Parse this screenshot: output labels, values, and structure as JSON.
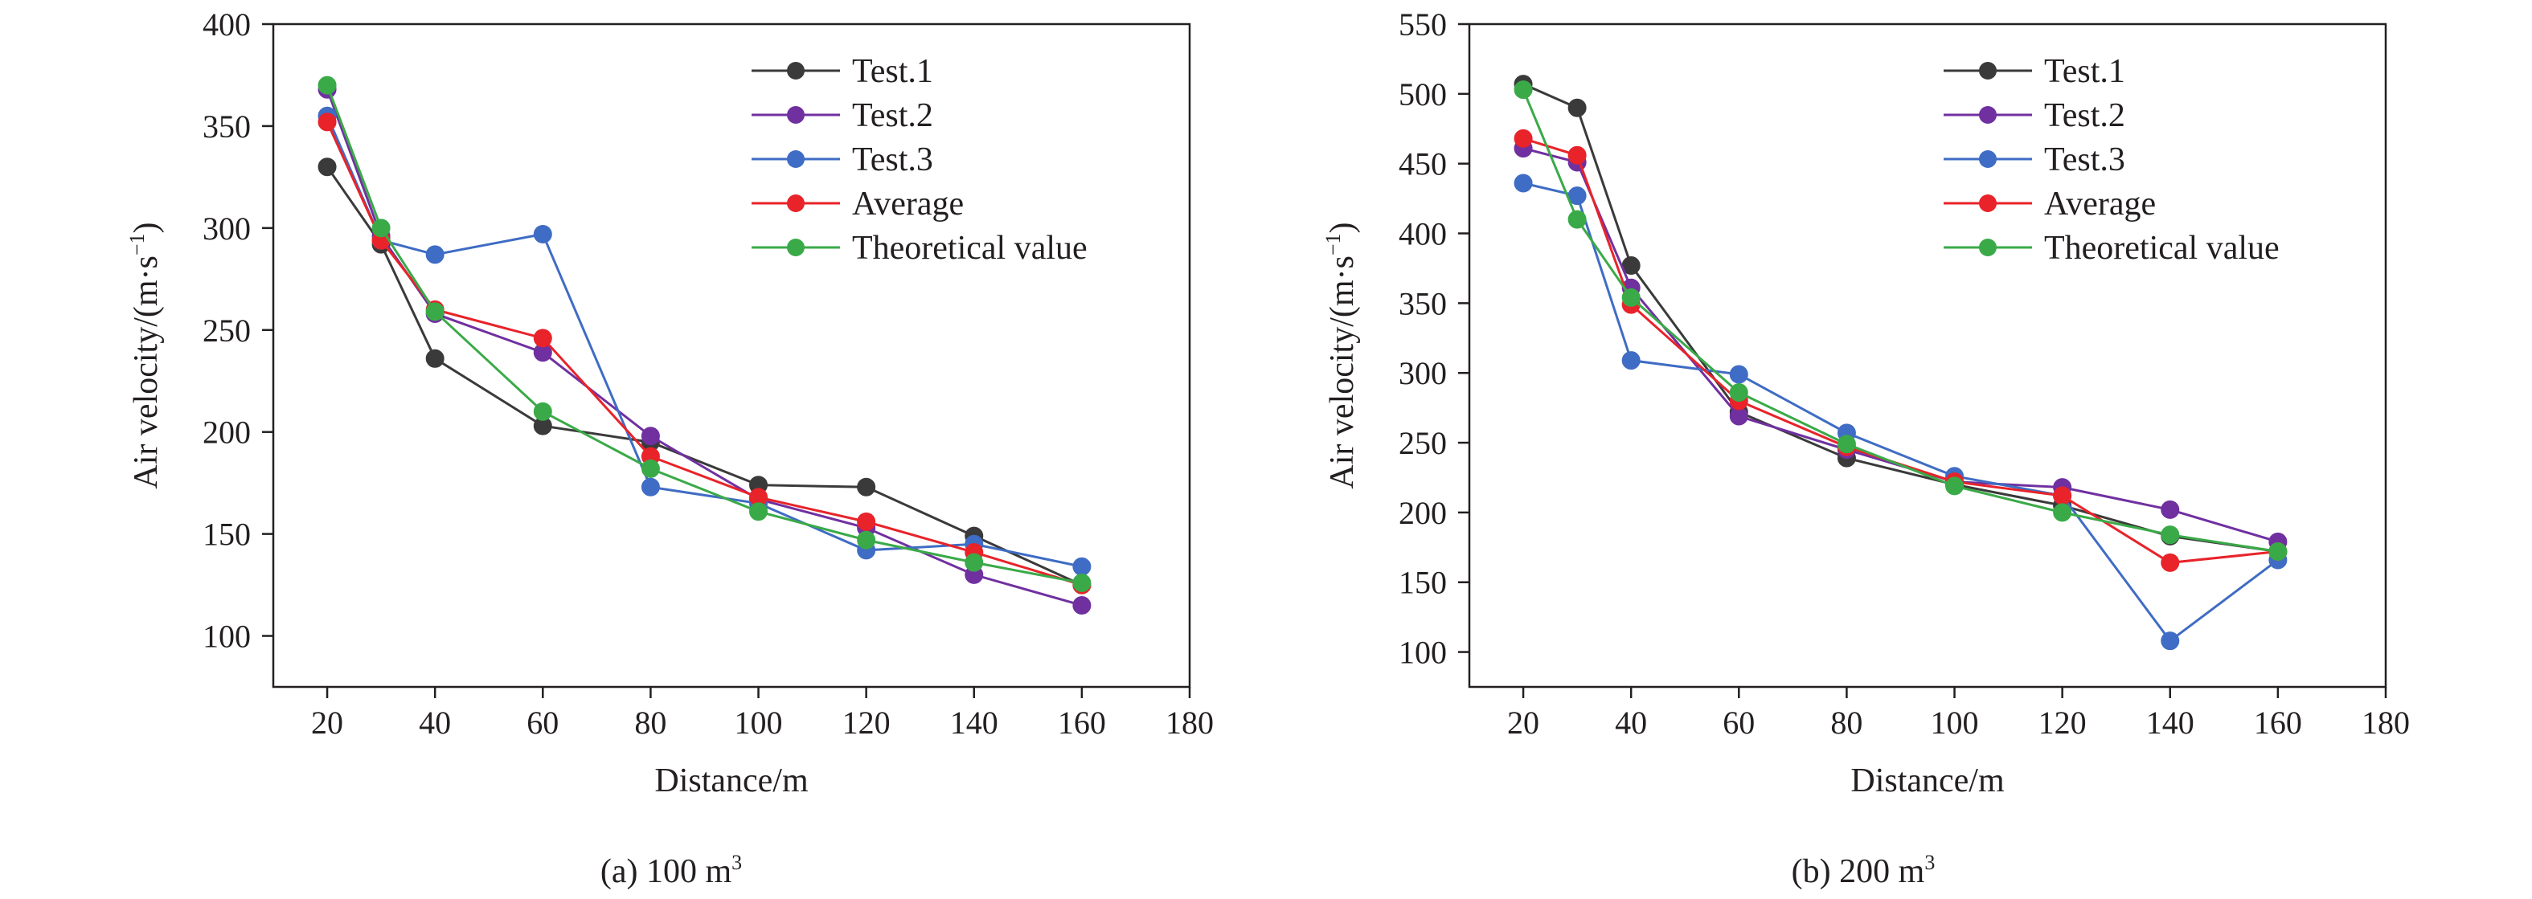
{
  "chart_data": [
    {
      "type": "line",
      "caption": "(a) 100 m",
      "caption_sup": "3",
      "xlabel": "Distance/m",
      "ylabel_main": "Air velocity/(m·s",
      "ylabel_sup": "−1",
      "ylabel_end": ")",
      "xlim": [
        10,
        180
      ],
      "ylim": [
        75,
        400
      ],
      "xticks": [
        20,
        40,
        60,
        80,
        100,
        120,
        140,
        160,
        180
      ],
      "yticks": [
        100,
        150,
        200,
        250,
        300,
        350,
        400
      ],
      "x": [
        20,
        30,
        40,
        60,
        80,
        100,
        120,
        140,
        160
      ],
      "legend_position": "top-right",
      "series": [
        {
          "name": "Test.1",
          "color": "#3a3a3a",
          "values": [
            330,
            292,
            236,
            203,
            195,
            174,
            173,
            149,
            125
          ]
        },
        {
          "name": "Test.2",
          "color": "#7030a0",
          "values": [
            368,
            296,
            258,
            239,
            198,
            167,
            153,
            130,
            115
          ]
        },
        {
          "name": "Test.3",
          "color": "#3f6cc4",
          "values": [
            355,
            294,
            287,
            297,
            173,
            165,
            142,
            145,
            134
          ]
        },
        {
          "name": "Average",
          "color": "#e8232a",
          "values": [
            352,
            294,
            260,
            246,
            188,
            168,
            156,
            141,
            125
          ]
        },
        {
          "name": "Theoretical value",
          "color": "#3aaa48",
          "values": [
            370,
            300,
            259,
            210,
            182,
            161,
            147,
            136,
            126
          ]
        }
      ]
    },
    {
      "type": "line",
      "caption": "(b) 200 m",
      "caption_sup": "3",
      "xlabel": "Distance/m",
      "ylabel_main": "Air velocity/(m·s",
      "ylabel_sup": "−1",
      "ylabel_end": ")",
      "xlim": [
        10,
        180
      ],
      "ylim": [
        75,
        550
      ],
      "xticks": [
        20,
        40,
        60,
        80,
        100,
        120,
        140,
        160,
        180
      ],
      "yticks": [
        100,
        150,
        200,
        250,
        300,
        350,
        400,
        450,
        500,
        550
      ],
      "x": [
        20,
        30,
        40,
        60,
        80,
        100,
        120,
        140,
        160
      ],
      "legend_position": "top-right",
      "series": [
        {
          "name": "Test.1",
          "color": "#3a3a3a",
          "values": [
            507,
            490,
            377,
            272,
            239,
            220,
            205,
            183,
            172
          ]
        },
        {
          "name": "Test.2",
          "color": "#7030a0",
          "values": [
            461,
            451,
            361,
            269,
            245,
            222,
            218,
            202,
            179
          ]
        },
        {
          "name": "Test.3",
          "color": "#3f6cc4",
          "values": [
            436,
            427,
            309,
            299,
            257,
            226,
            212,
            108,
            166
          ]
        },
        {
          "name": "Average",
          "color": "#e8232a",
          "values": [
            468,
            456,
            349,
            280,
            247,
            222,
            212,
            164,
            172
          ]
        },
        {
          "name": "Theoretical value",
          "color": "#3aaa48",
          "values": [
            503,
            410,
            354,
            286,
            249,
            219,
            200,
            184,
            172
          ]
        }
      ]
    }
  ]
}
